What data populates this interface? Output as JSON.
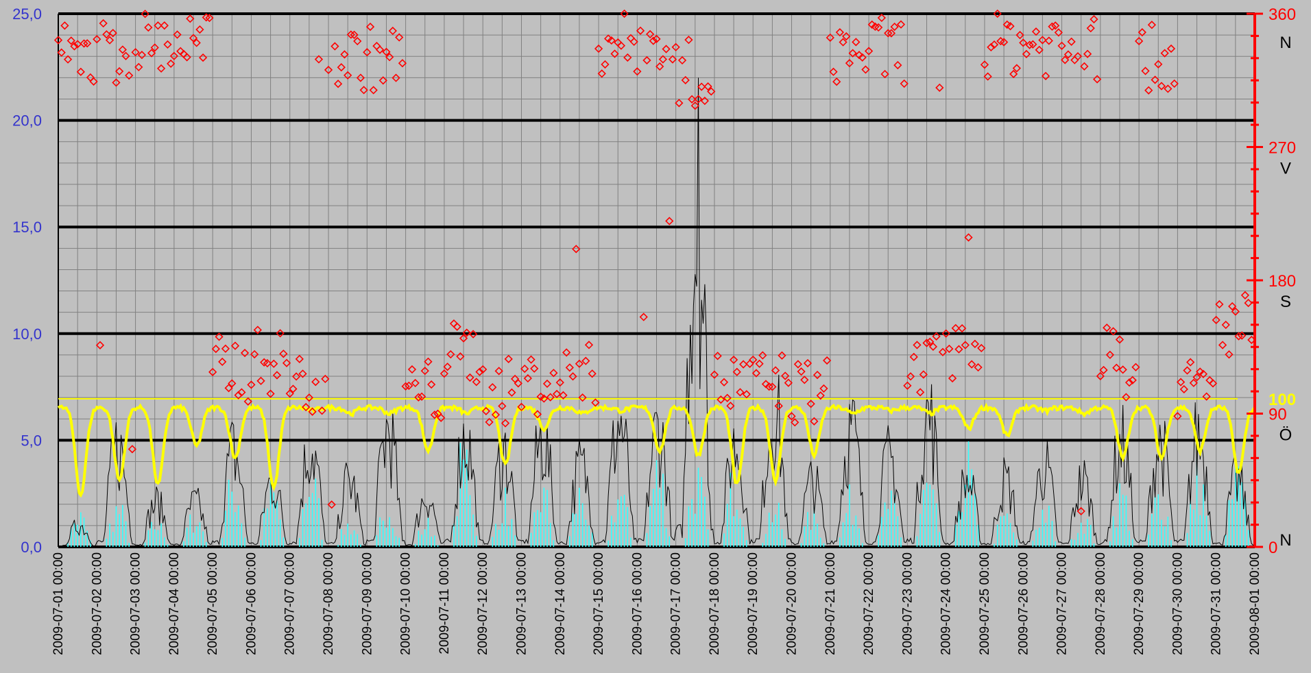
{
  "chart_data": {
    "type": "line",
    "x_range": [
      "2009-07-01 00:00",
      "2009-08-01 00:00"
    ],
    "x_tick_labels": [
      "2009-07-01 00:00",
      "2009-07-02 00:00",
      "2009-07-03 00:00",
      "2009-07-04 00:00",
      "2009-07-05 00:00",
      "2009-07-06 00:00",
      "2009-07-07 00:00",
      "2009-07-08 00:00",
      "2009-07-09 00:00",
      "2009-07-10 00:00",
      "2009-07-11 00:00",
      "2009-07-12 00:00",
      "2009-07-13 00:00",
      "2009-07-14 00:00",
      "2009-07-15 00:00",
      "2009-07-16 00:00",
      "2009-07-17 00:00",
      "2009-07-18 00:00",
      "2009-07-19 00:00",
      "2009-07-20 00:00",
      "2009-07-21 00:00",
      "2009-07-22 00:00",
      "2009-07-23 00:00",
      "2009-07-24 00:00",
      "2009-07-25 00:00",
      "2009-07-26 00:00",
      "2009-07-27 00:00",
      "2009-07-28 00:00",
      "2009-07-29 00:00",
      "2009-07-30 00:00",
      "2009-07-31 00:00",
      "2009-08-01 00:00"
    ],
    "y_left": {
      "range": [
        0,
        25
      ],
      "ticks": [
        "0,0",
        "5,0",
        "10,0",
        "15,0",
        "20,0",
        "25,0"
      ],
      "tick_values": [
        0,
        5,
        10,
        15,
        20,
        25
      ]
    },
    "y_right": {
      "range": [
        0,
        360
      ],
      "ticks": [
        "0",
        "90",
        "100",
        "180",
        "270",
        "360"
      ],
      "tick_values": [
        0,
        90,
        100,
        180,
        270,
        360
      ]
    },
    "compass_labels": [
      {
        "label": "N",
        "deg": 360
      },
      {
        "label": "V",
        "deg": 270
      },
      {
        "label": "S",
        "deg": 180
      },
      {
        "label": "Ö",
        "deg": 90
      },
      {
        "label": "N",
        "deg": 0
      }
    ],
    "reference_line": {
      "value_right": 100,
      "color": "#ffff00"
    },
    "colors": {
      "background": "#c0c0c0",
      "grid_major": "#000000",
      "grid_minor": "#808080",
      "wind_speed": "#000000",
      "wind_mean": "#33ffff",
      "humidity": "#ffff00",
      "wind_direction": "#ff0000",
      "left_axis_text": "#3333cc",
      "right_axis": "#ff0000"
    },
    "series": [
      {
        "axis": "left",
        "style": "line-black",
        "values_day_peak": [
          1.5,
          6.8,
          3.0,
          3.0,
          6.5,
          4.5,
          7.0,
          4.5,
          8.0,
          3.5,
          7.5,
          6.5,
          7.5,
          5.5,
          8.5,
          8.0,
          22.0,
          7.0,
          9.5,
          4.5,
          8.0,
          6.0,
          9.0,
          4.5,
          4.5,
          5.5,
          4.5,
          7.0,
          7.0,
          7.5,
          4.5
        ]
      },
      {
        "axis": "left",
        "style": "bars-cyan",
        "values_day_peak": [
          2.0,
          2.5,
          1.5,
          2.0,
          4.0,
          3.5,
          4.5,
          1.5,
          3.0,
          1.5,
          6.0,
          3.0,
          3.5,
          3.5,
          3.5,
          5.0,
          4.5,
          4.5,
          2.5,
          2.0,
          3.0,
          3.0,
          4.0,
          5.5,
          2.0,
          2.5,
          2.0,
          3.5,
          3.5,
          4.5,
          4.5
        ]
      },
      {
        "axis": "right",
        "style": "line-yellow",
        "values_day_min": [
          35,
          45,
          42,
          68,
          60,
          40,
          92,
          90,
          90,
          65,
          90,
          55,
          80,
          90,
          92,
          65,
          62,
          42,
          45,
          62,
          90,
          92,
          90,
          80,
          75,
          92,
          90,
          60,
          60,
          65,
          50
        ]
      },
      {
        "axis": "right",
        "style": "markers-red-diamond",
        "values_day_median": [
          330,
          335,
          340,
          340,
          120,
          125,
          110,
          330,
          330,
          105,
          130,
          105,
          110,
          115,
          340,
          340,
          320,
          110,
          110,
          105,
          335,
          335,
          120,
          130,
          340,
          340,
          335,
          130,
          330,
          105,
          150
        ]
      }
    ]
  }
}
